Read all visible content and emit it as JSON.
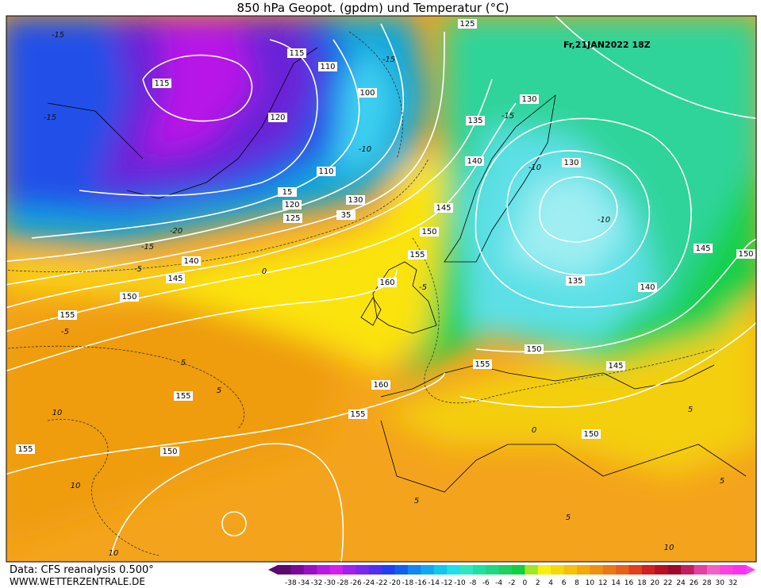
{
  "header": {
    "title": "850 hPa Geopot. (gpdm) und Temperatur (°C)",
    "valid_time": "Fr,21JAN2022 18Z"
  },
  "contour_labels": [
    "125",
    "115",
    "110",
    "115",
    "100",
    "130",
    "135",
    "120",
    "140",
    "130",
    "110",
    "15",
    "120",
    "130",
    "125",
    "35",
    "145",
    "150",
    "155",
    "140",
    "145",
    "145",
    "150",
    "160",
    "135",
    "140",
    "150",
    "155",
    "150",
    "155",
    "145",
    "160",
    "155",
    "155",
    "150",
    "155",
    "150"
  ],
  "isotherm_labels": [
    "-15",
    "-15",
    "-20",
    "-15",
    "-5",
    "0",
    "-10",
    "-15",
    "-10",
    "-10",
    "-5",
    "5",
    "5",
    "10",
    "10",
    "10",
    "5",
    "5",
    "0",
    "5",
    "5",
    "10",
    "-5",
    "-15"
  ],
  "colorbar": {
    "labels": [
      "-38",
      "-34",
      "-32",
      "-30",
      "-28",
      "-26",
      "-24",
      "-22",
      "-20",
      "-18",
      "-16",
      "-14",
      "-12",
      "-10",
      "-8",
      "-6",
      "-4",
      "-2",
      "0",
      "2",
      "4",
      "6",
      "8",
      "10",
      "12",
      "14",
      "16",
      "18",
      "20",
      "22",
      "24",
      "26",
      "28",
      "30",
      "32"
    ]
  },
  "footer": {
    "source": "Data: CFS reanalysis 0.500°",
    "website": "WWW.WETTERZENTRALE.DE"
  }
}
